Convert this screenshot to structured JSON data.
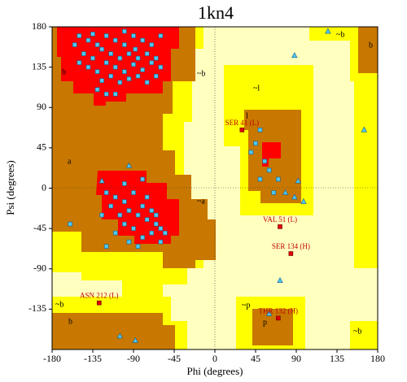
{
  "chart_data": {
    "type": "scatter",
    "title": "1kn4",
    "x_label": "Phi (degrees)",
    "y_label": "Psi (degrees)",
    "xlim": [
      -180,
      180
    ],
    "ylim": [
      -180,
      180
    ],
    "xticks": [
      -180,
      -135,
      -90,
      -45,
      0,
      45,
      90,
      135,
      180
    ],
    "yticks": [
      180,
      135,
      90,
      45,
      0,
      -45,
      -90,
      -135
    ],
    "region_labels": [
      "b",
      "~b",
      "a",
      "~a",
      "l",
      "~l",
      "~b",
      "b",
      "~b",
      "b",
      "~p",
      "p",
      "~b"
    ],
    "series": [
      {
        "marker": "square",
        "color": "#4ec8f0",
        "x": [
          -150,
          -140,
          -130,
          -120,
          -110,
          -100,
          -90,
          -80,
          -70,
          -60,
          -145,
          -135,
          -125,
          -115,
          -105,
          -95,
          -85,
          -75,
          -65,
          -140,
          -130,
          -120,
          -110,
          -100,
          -90,
          -80,
          -70,
          -60,
          -150,
          -125,
          -115,
          -105,
          -95,
          -85,
          -75,
          -110,
          -130,
          -155,
          -65,
          -100,
          -135,
          -88,
          -120,
          -120,
          -110,
          -100,
          -90,
          -80,
          -70,
          -65,
          -75,
          -85,
          -95,
          -105,
          -115,
          -60,
          -70,
          -80,
          -90,
          -100,
          -110,
          -95,
          -85,
          -75,
          -65,
          -55,
          -125,
          -100,
          -80,
          -60,
          -120,
          -160,
          40,
          45,
          50,
          55,
          60,
          50,
          65,
          70
        ],
        "values": [
          170,
          165,
          160,
          170,
          165,
          160,
          170,
          165,
          160,
          170,
          150,
          145,
          155,
          150,
          145,
          150,
          145,
          150,
          145,
          135,
          130,
          140,
          135,
          130,
          138,
          132,
          140,
          135,
          140,
          120,
          125,
          118,
          122,
          125,
          118,
          105,
          110,
          160,
          125,
          175,
          172,
          155,
          105,
          -5,
          -10,
          -15,
          -5,
          -20,
          -25,
          -40,
          -35,
          -30,
          -25,
          -30,
          -20,
          -45,
          -50,
          -55,
          -45,
          -40,
          -50,
          -60,
          -65,
          -10,
          -30,
          -50,
          -30,
          5,
          10,
          -60,
          -65,
          -40,
          40,
          50,
          10,
          30,
          20,
          65,
          -5,
          10
        ]
      },
      {
        "marker": "triangle",
        "color": "#4ec8f0",
        "x": [
          -95,
          -125,
          78,
          88,
          92,
          98,
          88,
          165,
          125,
          -88,
          -105,
          60,
          72
        ],
        "values": [
          25,
          8,
          -5,
          -10,
          8,
          -15,
          148,
          65,
          175,
          -170,
          -165,
          -140,
          -103
        ]
      },
      {
        "marker": "square",
        "color": "#e00000",
        "x": [
          30,
          72,
          84,
          -128,
          70
        ],
        "values": [
          65,
          -43,
          -73,
          -128,
          -145
        ],
        "labels": [
          "SER 41 (L)",
          "VAL 51 (L)",
          "SER 134 (H)",
          "ASN 212 (L)",
          "THR 132 (H)"
        ]
      }
    ]
  }
}
